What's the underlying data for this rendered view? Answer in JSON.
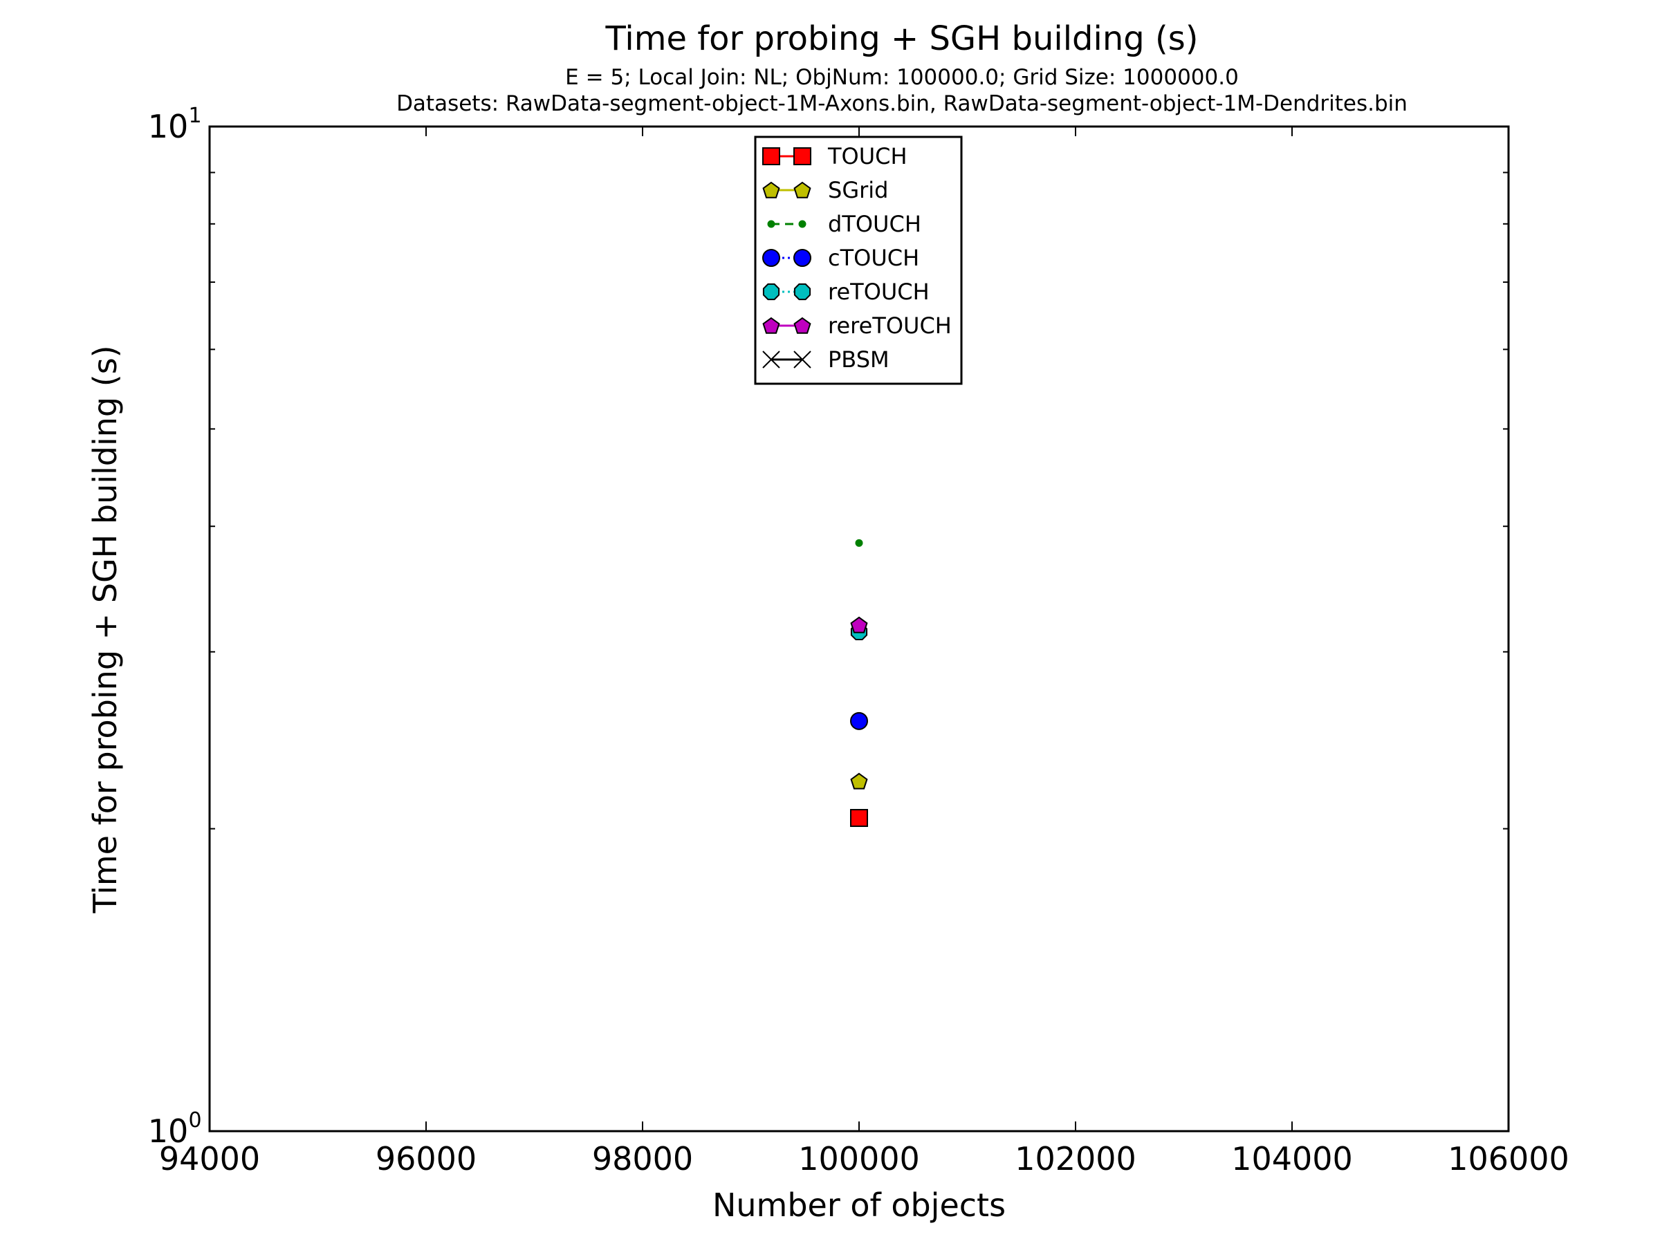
{
  "chart_data": {
    "type": "scatter",
    "title": "Time for probing + SGH building (s)",
    "subtitle_lines": [
      "E = 5; Local Join: NL; ObjNum: 100000.0; Grid Size: 1000000.0",
      "Datasets: RawData-segment-object-1M-Axons.bin, RawData-segment-object-1M-Dendrites.bin"
    ],
    "xlabel": "Number of objects",
    "ylabel": "Time for probing + SGH building (s)",
    "xlim": [
      94000,
      106000
    ],
    "ylim": [
      1,
      10
    ],
    "yscale": "log",
    "x_ticks": [
      94000,
      96000,
      98000,
      100000,
      102000,
      104000,
      106000
    ],
    "x_tick_labels": [
      "94000",
      "96000",
      "98000",
      "100000",
      "102000",
      "104000",
      "106000"
    ],
    "y_tick_labels": [
      {
        "value": 1,
        "base": "10",
        "exp": "0"
      },
      {
        "value": 10,
        "base": "10",
        "exp": "1"
      }
    ],
    "legend_position": "top-center",
    "grid": false,
    "series": [
      {
        "name": "TOUCH",
        "color": "#ff0000",
        "marker": "square",
        "line": "solid",
        "x": [
          100000
        ],
        "y": [
          2.05
        ]
      },
      {
        "name": "SGrid",
        "color": "#bfbf00",
        "marker": "pentagon",
        "line": "solid",
        "x": [
          100000
        ],
        "y": [
          2.23
        ]
      },
      {
        "name": "dTOUCH",
        "color": "#008000",
        "marker": "dot",
        "line": "dashed",
        "x": [
          100000
        ],
        "y": [
          3.85
        ]
      },
      {
        "name": "cTOUCH",
        "color": "#0000ff",
        "marker": "circle",
        "line": "dotted",
        "x": [
          100000
        ],
        "y": [
          2.56
        ]
      },
      {
        "name": "reTOUCH",
        "color": "#00bfbf",
        "marker": "octagon",
        "line": "dotted",
        "x": [
          100000
        ],
        "y": [
          3.14
        ]
      },
      {
        "name": "rereTOUCH",
        "color": "#bf00bf",
        "marker": "pentagon",
        "line": "solid",
        "x": [
          100000
        ],
        "y": [
          3.19
        ]
      },
      {
        "name": "PBSM",
        "color": "#000000",
        "marker": "x",
        "line": "solid",
        "x": [],
        "y": []
      }
    ]
  }
}
